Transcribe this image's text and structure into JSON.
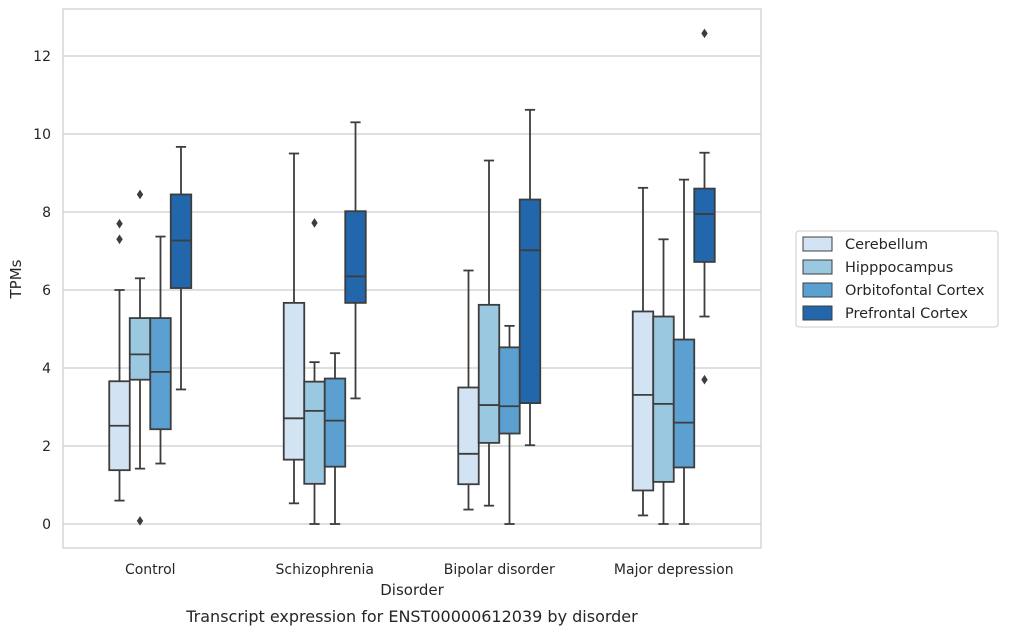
{
  "chart_data": {
    "type": "box",
    "title": "",
    "caption": "Transcript expression for ENST00000612039 by disorder",
    "xlabel": "Disorder",
    "ylabel": "TPMs",
    "ylim": [
      -0.6,
      13.2
    ],
    "yticks": [
      0,
      2,
      4,
      6,
      8,
      10,
      12
    ],
    "grid": "horizontal",
    "legend_position": "right",
    "categories": [
      "Control",
      "Schizophrenia",
      "Bipolar disorder",
      "Major depression"
    ],
    "series": [
      {
        "name": "Cerebellum",
        "color": "#d2e3f3",
        "boxes": [
          {
            "min": 0.6,
            "q1": 1.38,
            "median": 2.52,
            "q3": 3.66,
            "max": 6.0,
            "outliers": [
              7.3,
              7.7
            ]
          },
          {
            "min": 0.53,
            "q1": 1.65,
            "median": 2.71,
            "q3": 5.67,
            "max": 9.5,
            "outliers": []
          },
          {
            "min": 0.37,
            "q1": 1.02,
            "median": 1.8,
            "q3": 3.5,
            "max": 6.5,
            "outliers": []
          },
          {
            "min": 0.22,
            "q1": 0.86,
            "median": 3.31,
            "q3": 5.45,
            "max": 8.62,
            "outliers": []
          }
        ]
      },
      {
        "name": "Hipppocampus",
        "color": "#9ac8e0",
        "boxes": [
          {
            "min": 1.42,
            "q1": 3.7,
            "median": 4.35,
            "q3": 5.28,
            "max": 6.3,
            "outliers": [
              0.08,
              8.45
            ]
          },
          {
            "min": 0.0,
            "q1": 1.03,
            "median": 2.9,
            "q3": 3.65,
            "max": 4.15,
            "outliers": [
              7.72
            ]
          },
          {
            "min": 0.47,
            "q1": 2.08,
            "median": 3.05,
            "q3": 5.62,
            "max": 9.32,
            "outliers": []
          },
          {
            "min": 0.0,
            "q1": 1.08,
            "median": 3.08,
            "q3": 5.32,
            "max": 7.3,
            "outliers": []
          }
        ]
      },
      {
        "name": "Orbitofontal Cortex",
        "color": "#5ba0d0",
        "boxes": [
          {
            "min": 1.55,
            "q1": 2.43,
            "median": 3.9,
            "q3": 5.28,
            "max": 7.37,
            "outliers": []
          },
          {
            "min": 0.0,
            "q1": 1.47,
            "median": 2.65,
            "q3": 3.73,
            "max": 4.38,
            "outliers": []
          },
          {
            "min": 0.0,
            "q1": 2.32,
            "median": 3.02,
            "q3": 4.53,
            "max": 5.08,
            "outliers": []
          },
          {
            "min": 0.0,
            "q1": 1.45,
            "median": 2.6,
            "q3": 4.73,
            "max": 8.83,
            "outliers": []
          }
        ]
      },
      {
        "name": "Prefrontal Cortex",
        "color": "#2266ac",
        "boxes": [
          {
            "min": 3.45,
            "q1": 6.05,
            "median": 7.27,
            "q3": 8.45,
            "max": 9.67,
            "outliers": []
          },
          {
            "min": 3.22,
            "q1": 5.67,
            "median": 6.35,
            "q3": 8.02,
            "max": 10.3,
            "outliers": []
          },
          {
            "min": 2.02,
            "q1": 3.1,
            "median": 7.02,
            "q3": 8.32,
            "max": 10.62,
            "outliers": []
          },
          {
            "min": 5.32,
            "q1": 6.72,
            "median": 7.95,
            "q3": 8.6,
            "max": 9.52,
            "outliers": [
              3.7,
              12.58
            ]
          }
        ]
      }
    ]
  }
}
